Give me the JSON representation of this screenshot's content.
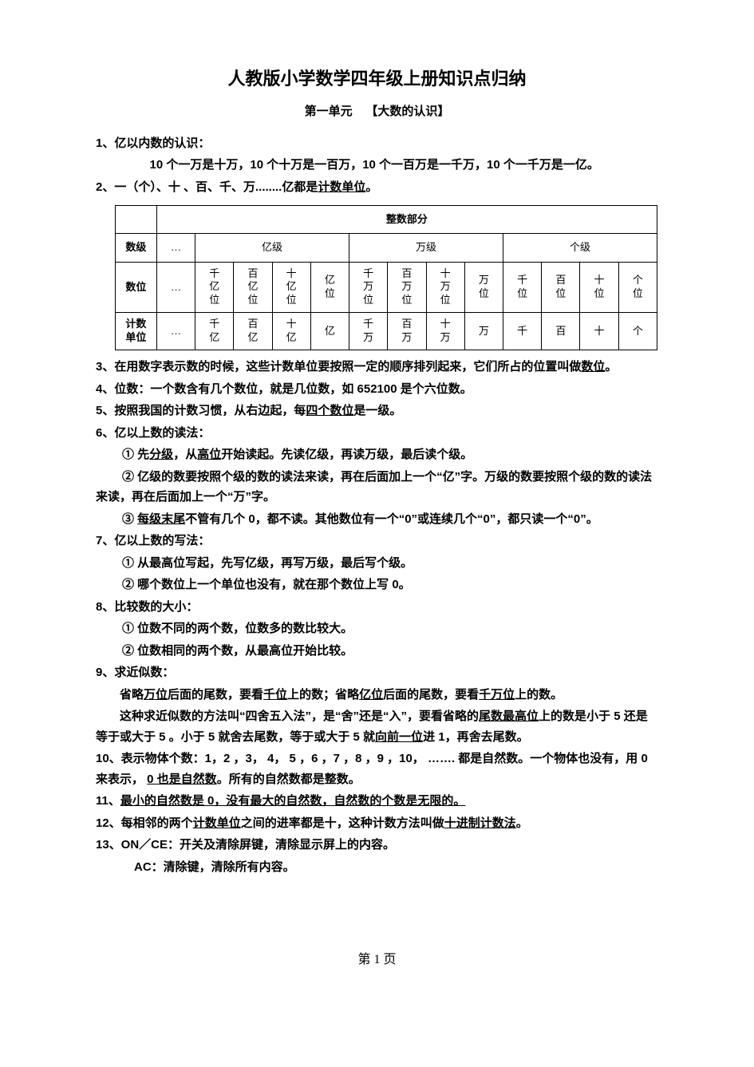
{
  "title": "人教版小学数学四年级上册知识点归纳",
  "subtitle_left": "第一单元",
  "subtitle_right": "【大数的认识】",
  "p1_head": "1、亿以内数的认识：",
  "p1_body": "10 个一万是十万，10 个十万是一百万，10 个一百万是一千万，10 个一千万是一亿。",
  "p2_a": "2、一（个）、十 、百、千、万........亿都是",
  "p2_u": "计数单位",
  "p2_b": "。",
  "table": {
    "header": "整数部分",
    "row1_label": "数级",
    "row1": [
      "…",
      "亿级",
      "万级",
      "个级"
    ],
    "row2_label": "数位",
    "row2": [
      "…",
      "千亿位",
      "百亿位",
      "十亿位",
      "亿位",
      "千万位",
      "百万位",
      "十万位",
      "万位",
      "千位",
      "百位",
      "十位",
      "个位"
    ],
    "row3_label": "计数单位",
    "row3": [
      "…",
      "千亿",
      "百亿",
      "十亿",
      "亿",
      "千万",
      "百万",
      "十万",
      "万",
      "千",
      "百",
      "十",
      "个"
    ],
    "border_color": "#000000",
    "font_size_header": 14,
    "font_size_cells": 13
  },
  "p3_a": "3、在用数字表示数的时候，这些计数单位要按照一定的顺序排列起来，它们所占的位置叫做",
  "p3_u": "数位",
  "p3_b": "。",
  "p4": "4、位数：一个数含有几个数位，就是几位数，如 652100 是个六位数。",
  "p5_a": "5、按照我国的计数习惯，从右边起，每",
  "p5_u": "四个数位",
  "p5_b": "是一级。",
  "p6": "6、亿以上数的读法：",
  "p6_1a": "① 先",
  "p6_1u1": "分级",
  "p6_1b": "，从",
  "p6_1u2": "高位",
  "p6_1c": "开始读起。先读亿级，再读万级，最后读个级。",
  "p6_2": "② 亿级的数要按照个级的数的读法来读，再在后面加上一个“亿”字。万级的数要按照个级的数的读法来读，再在后面加上一个“万”字。",
  "p6_3a": "③ ",
  "p6_3u": "每级末尾",
  "p6_3b": "不管有几个 0，都不读。其他数位有一个“0”或连续几个“0”，都只读一个“0”。",
  "p7": "7、亿以上数的写法：",
  "p7_1": "① 从最高位写起，先写亿级，再写万级，最后写个级。",
  "p7_2": "② 哪个数位上一个单位也没有，就在那个数位上写 0。",
  "p8": "8、比较数的大小：",
  "p8_1": "① 位数不同的两个数，位数多的数比较大。",
  "p8_2": "② 位数相同的两个数，从最高位开始比较。",
  "p9": "9、求近似数：",
  "p9_1a": "省略",
  "p9_1u1": "万位",
  "p9_1b": "后面的尾数，要看",
  "p9_1u2": "千位",
  "p9_1c": "上的数；省略",
  "p9_1u3": "亿位",
  "p9_1d": "后面的尾数，要看",
  "p9_1u4": "千万位",
  "p9_1e": "上的数。",
  "p9_2a": "这种求近似数的方法叫“四舍五入法”，是“舍”还是“入”，要看省略的",
  "p9_2u1": "尾数",
  "p9_2u2": "最高位",
  "p9_2b": "上的数是小于 5  还是等于或大于 5 。小于 5 就舍去尾数，等于或大于 5 就",
  "p9_2u3": "向前一位",
  "p9_2c": "进 1，再舍去尾数。",
  "p10a": "10、表示物体个数：1，2 ，3，  4，  5 ，6 ，7 ，8 ，9 ，10，  ……. 都是自然数。一个物体也没有，用 0 来表示，  ",
  "p10u": "0 也是自然数",
  "p10b": "。所有的自然数都是整数。",
  "p11a": "11、",
  "p11u": "最小的自然数是 0，没有最大的自然数，自然数的个数是无限的。",
  "p12a": "12、每相邻的两个",
  "p12u1": "计数单位",
  "p12b": "之间的进率都是十，这种计数方法叫做",
  "p12u2": "十进制计数法",
  "p12c": "。",
  "p13_1": "13、ON／CE：开关及清除屏键，清除显示屏上的内容。",
  "p13_2": "AC：清除键，清除所有内容。",
  "footer": "第  1  页"
}
